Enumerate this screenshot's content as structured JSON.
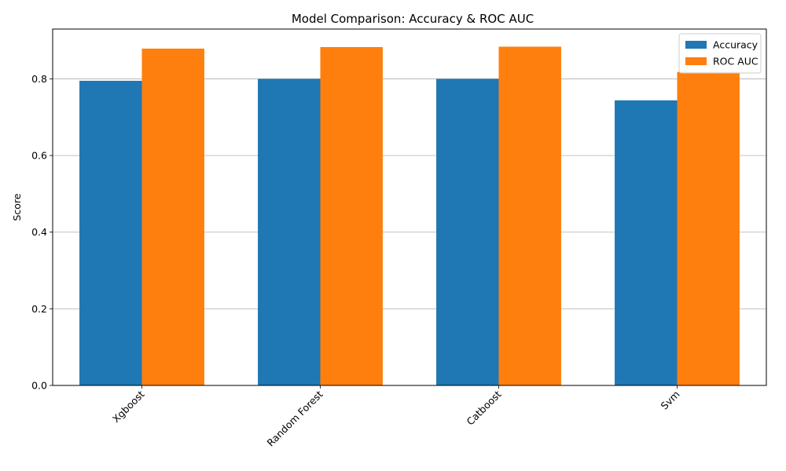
{
  "chart_data": {
    "type": "bar",
    "title": "Model Comparison: Accuracy & ROC AUC",
    "xlabel": "",
    "ylabel": "Score",
    "categories": [
      "Xgboost",
      "Random Forest",
      "Catboost",
      "Svm"
    ],
    "series": [
      {
        "name": "Accuracy",
        "color": "#1f77b4",
        "values": [
          0.795,
          0.8,
          0.8,
          0.744
        ]
      },
      {
        "name": "ROC AUC",
        "color": "#ff7f0e",
        "values": [
          0.879,
          0.883,
          0.884,
          0.818
        ]
      }
    ],
    "ylim": [
      0,
      0.93
    ],
    "yticks": [
      "0.0",
      "0.2",
      "0.4",
      "0.6",
      "0.8"
    ],
    "grid": "y",
    "legend": "top-right",
    "xtick_rotation_deg": 45
  }
}
